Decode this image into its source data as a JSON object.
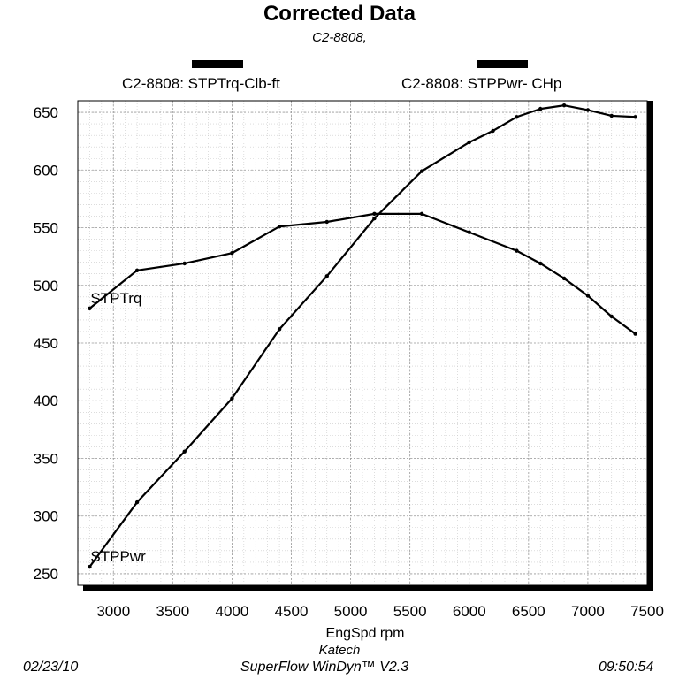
{
  "header": {
    "title": "Corrected Data",
    "subtitle": "C2-8808,"
  },
  "legend": [
    {
      "label": "C2-8808: STPTrq-Clb-ft",
      "color": "#000000"
    },
    {
      "label": "C2-8808: STPPwr- CHp",
      "color": "#000000"
    }
  ],
  "footer": {
    "date": "02/23/10",
    "company": "Katech",
    "software": "SuperFlow WinDyn™ V2.3",
    "time": "09:50:54"
  },
  "chart_data": {
    "type": "line",
    "title": "Corrected Data",
    "subtitle": "C2-8808,",
    "xlabel": "EngSpd  rpm",
    "ylabel": "",
    "xlim": [
      2700,
      7500
    ],
    "ylim": [
      240,
      660
    ],
    "xticks": [
      3000,
      3500,
      4000,
      4500,
      5000,
      5500,
      6000,
      6500,
      7000,
      7500
    ],
    "yticks": [
      250,
      300,
      350,
      400,
      450,
      500,
      550,
      600,
      650
    ],
    "grid": true,
    "legend_position": "top",
    "series": [
      {
        "name": "C2-8808: STPTrq-Clb-ft",
        "end_label": "STPTrq",
        "x": [
          2800,
          3200,
          3600,
          4000,
          4400,
          4800,
          5200,
          5600,
          6000,
          6400,
          6600,
          6800,
          7000,
          7200,
          7400
        ],
        "y": [
          480,
          513,
          519,
          528,
          551,
          555,
          562,
          562,
          546,
          530,
          519,
          506,
          491,
          473,
          458
        ]
      },
      {
        "name": "C2-8808: STPPwr- CHp",
        "end_label": "STPPwr",
        "x": [
          2800,
          3200,
          3600,
          4000,
          4400,
          4800,
          5200,
          5600,
          6000,
          6200,
          6400,
          6600,
          6800,
          7000,
          7200,
          7400
        ],
        "y": [
          256,
          312,
          356,
          402,
          462,
          508,
          558,
          599,
          624,
          634,
          646,
          653,
          656,
          652,
          647,
          646
        ]
      }
    ]
  }
}
